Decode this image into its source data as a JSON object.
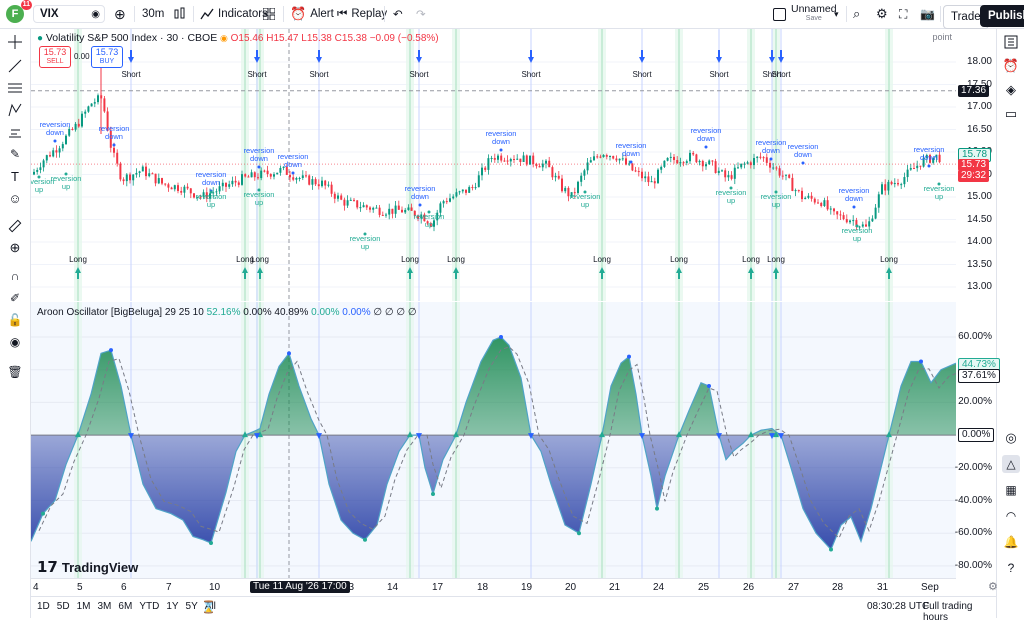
{
  "toolbar": {
    "avatar_letter": "F",
    "notif_count": "11",
    "symbol": "VIX",
    "interval": "30m",
    "indicators": "Indicators",
    "alert": "Alert",
    "replay": "Replay",
    "layout_name": "Unnamed",
    "layout_status": "Save",
    "trade": "Trade",
    "publish": "Publish"
  },
  "legend": {
    "title": "Volatility S&P 500 Index · 30 · CBOE",
    "o": "O15.46",
    "h": "H15.47",
    "l": "L15.38",
    "c": "C15.38",
    "chg": "−0.09 (−0.58%)",
    "sell_price": "15.73",
    "sell_label": "SELL",
    "spread": "0.00",
    "buy_price": "15.73",
    "buy_label": "BUY",
    "scale_mode": "point"
  },
  "osc_legend": {
    "name": "Aroon Oscillator [BigBeluga]",
    "params": "29 25 10",
    "v1": "52.16%",
    "v2": "0.00%",
    "v3": "40.89%",
    "v4": "0.00%",
    "v5": "0.00%",
    "empties": "∅ ∅ ∅ ∅"
  },
  "price_scale": {
    "ticks": [
      "18.00",
      "17.50",
      "17.00",
      "16.50",
      "16.00",
      "15.50",
      "15.00",
      "14.50",
      "14.00",
      "13.50",
      "13.00"
    ],
    "crosshair": "17.36",
    "last_a": "15.78",
    "last_b": "15.73",
    "countdown": "29:32"
  },
  "osc_scale": {
    "ticks": [
      "60.00%",
      "40.00%",
      "20.00%",
      "0.00%",
      "-20.00%",
      "-40.00%",
      "-60.00%",
      "-80.00%"
    ],
    "zero": "0.00%",
    "val_a": "44.73%",
    "val_b": "37.61%"
  },
  "signals": {
    "short": "Short",
    "long": "Long",
    "rev_down_1": "reversion",
    "rev_down_2": "down",
    "rev_up_1": "reversion",
    "rev_up_2": "up"
  },
  "time_axis": {
    "labels": [
      "4",
      "5",
      "6",
      "7",
      "10",
      "12",
      "13",
      "14",
      "17",
      "18",
      "19",
      "20",
      "21",
      "24",
      "25",
      "26",
      "27",
      "28",
      "31",
      "Sep"
    ],
    "crosshair": "Tue 11 Aug '26   17:00"
  },
  "bottom": {
    "ranges": [
      "1D",
      "5D",
      "1M",
      "3M",
      "6M",
      "YTD",
      "1Y",
      "5Y",
      "All"
    ],
    "clock": "08:30:28 UTC",
    "session": "Full trading hours"
  },
  "watermark": "TradingView",
  "colors": {
    "up": "#089981",
    "down": "#f23645",
    "short_arrow": "#2962ff",
    "long_arrow": "#22ab94",
    "osc_green": "#1b8a52",
    "osc_blue": "#2d44a8"
  }
}
